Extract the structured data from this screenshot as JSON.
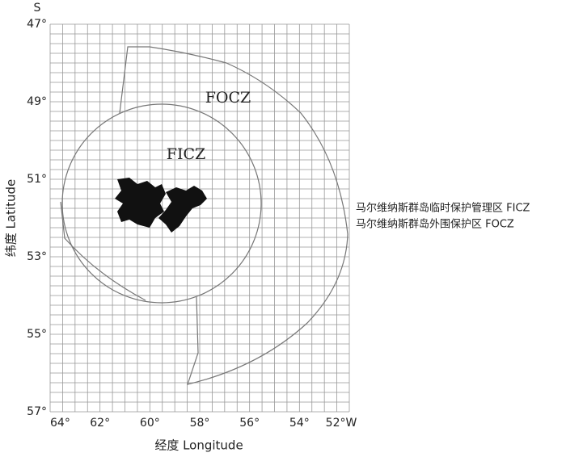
{
  "map": {
    "north_label": "S",
    "y_axis": {
      "title": "纬度 Latitude",
      "ticks": [
        "47°",
        "49°",
        "51°",
        "53°",
        "55°",
        "57°"
      ]
    },
    "x_axis": {
      "title": "经度 Longitude",
      "ticks": [
        "64°",
        "62°",
        "60°",
        "58°",
        "56°",
        "54°",
        "52°W"
      ]
    },
    "zones": [
      {
        "label": "FOCZ"
      },
      {
        "label": "FICZ"
      }
    ],
    "legend": [
      "马尔维纳斯群岛临时保护管理区 FICZ",
      "马尔维纳斯群岛外围保护区 FOCZ"
    ]
  }
}
